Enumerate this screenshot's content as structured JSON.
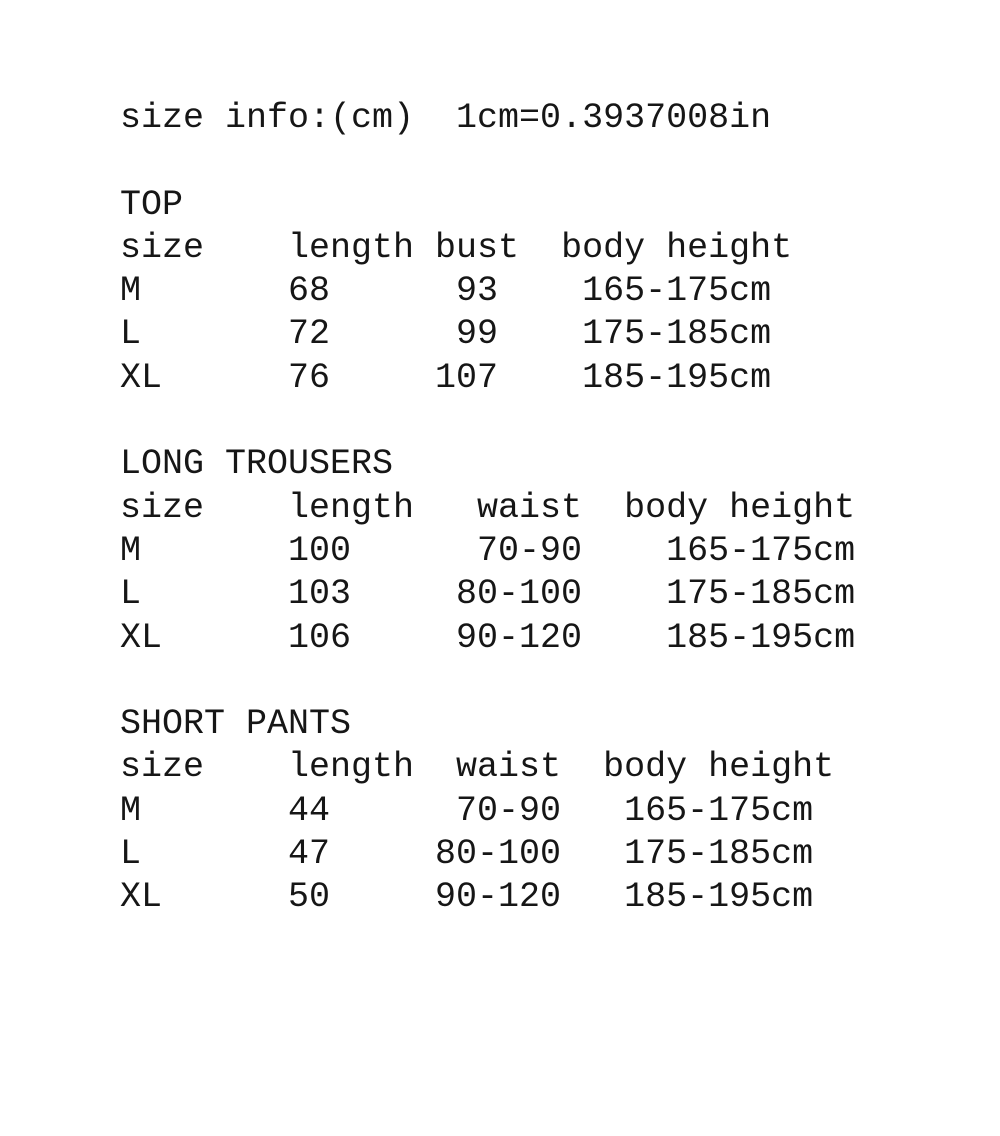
{
  "size_info": {
    "label": "size info:(cm)",
    "conversion": "1cm=0.3937008in"
  },
  "sections": [
    {
      "title": "TOP",
      "headers": [
        "size",
        "length",
        "bust",
        "body height"
      ],
      "rows": [
        [
          "M",
          "68",
          "93",
          "165-175cm"
        ],
        [
          "L",
          "72",
          "99",
          "175-185cm"
        ],
        [
          "XL",
          "76",
          "107",
          "185-195cm"
        ]
      ]
    },
    {
      "title": "LONG TROUSERS",
      "headers": [
        "size",
        "length",
        "waist",
        "body height"
      ],
      "rows": [
        [
          "M",
          "100",
          "70-90",
          "165-175cm"
        ],
        [
          "L",
          "103",
          "80-100",
          "175-185cm"
        ],
        [
          "XL",
          "106",
          "90-120",
          "185-195cm"
        ]
      ]
    },
    {
      "title": "SHORT PANTS",
      "headers": [
        "size",
        "length",
        "waist",
        "body height"
      ],
      "rows": [
        [
          "M",
          "44",
          "70-90",
          "165-175cm"
        ],
        [
          "L",
          "47",
          "80-100",
          "175-185cm"
        ],
        [
          "XL",
          "50",
          "90-120",
          "185-195cm"
        ]
      ]
    }
  ],
  "colors": {
    "text": "#161616",
    "background": "#ffffff"
  }
}
